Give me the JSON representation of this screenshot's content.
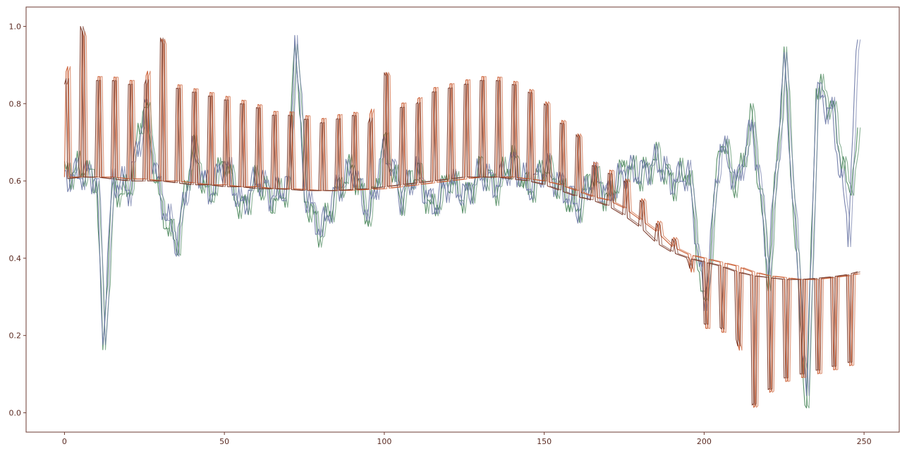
{
  "chart_data": {
    "type": "line",
    "title": "",
    "xlabel": "",
    "ylabel": "",
    "xlim": [
      -12,
      261
    ],
    "ylim": [
      -0.05,
      1.05
    ],
    "x_ticks": [
      0,
      50,
      100,
      150,
      200,
      250
    ],
    "x_tick_labels": [
      "0",
      "50",
      "100",
      "150",
      "200",
      "250"
    ],
    "y_ticks": [
      0.0,
      0.2,
      0.4,
      0.6,
      0.8,
      1.0
    ],
    "y_tick_labels": [
      "0.0",
      "0.2",
      "0.4",
      "0.6",
      "0.8",
      "1.0"
    ],
    "grid": false,
    "legend": "none",
    "series": [
      {
        "color": "#c95a2e",
        "description": "periodic spikes above a slowly varying baseline",
        "x": [
          0,
          5,
          10,
          15,
          20,
          25,
          30,
          35,
          40,
          45,
          50,
          55,
          60,
          65,
          70,
          75,
          80,
          85,
          90,
          95,
          100,
          105,
          110,
          115,
          120,
          125,
          130,
          135,
          140,
          145,
          150,
          155,
          160,
          165,
          170,
          175,
          180,
          185,
          190,
          195,
          200,
          205,
          210,
          215,
          220,
          225,
          230,
          235,
          240,
          245,
          248
        ],
        "baseline": [
          0.61,
          0.61,
          0.61,
          0.61,
          0.605,
          0.605,
          0.6,
          0.6,
          0.595,
          0.59,
          0.59,
          0.585,
          0.585,
          0.58,
          0.58,
          0.578,
          0.575,
          0.575,
          0.576,
          0.578,
          0.58,
          0.585,
          0.59,
          0.595,
          0.6,
          0.605,
          0.61,
          0.61,
          0.61,
          0.605,
          0.6,
          0.59,
          0.575,
          0.56,
          0.55,
          0.53,
          0.5,
          0.47,
          0.43,
          0.41,
          0.4,
          0.39,
          0.38,
          0.365,
          0.355,
          0.35,
          0.345,
          0.345,
          0.35,
          0.355,
          0.36
        ],
        "peaks": [
          0.87,
          1.0,
          0.87,
          0.87,
          0.86,
          0.86,
          0.98,
          0.85,
          0.84,
          0.83,
          0.82,
          0.81,
          0.8,
          0.78,
          0.78,
          0.77,
          0.76,
          0.77,
          0.78,
          0.76,
          0.89,
          0.8,
          0.81,
          0.84,
          0.85,
          0.86,
          0.87,
          0.87,
          0.86,
          0.84,
          0.81,
          0.76,
          0.73,
          0.65,
          0.63,
          0.61,
          0.56,
          0.5,
          0.46,
          0.4,
          0.22,
          0.21,
          0.2,
          0.01,
          0.05,
          0.08,
          0.09,
          0.1,
          0.11,
          0.12,
          0.13
        ]
      },
      {
        "color": "#4f8a5f",
        "description": "noisy series fluctuating around the baseline",
        "x": [
          0,
          5,
          10,
          12,
          15,
          20,
          25,
          30,
          35,
          40,
          45,
          50,
          55,
          60,
          65,
          70,
          72,
          75,
          80,
          85,
          90,
          95,
          100,
          105,
          110,
          115,
          120,
          125,
          130,
          135,
          140,
          145,
          150,
          155,
          160,
          165,
          170,
          175,
          180,
          185,
          190,
          195,
          200,
          205,
          210,
          215,
          220,
          225,
          230,
          232,
          235,
          240,
          245,
          248
        ],
        "values": [
          0.62,
          0.63,
          0.6,
          0.17,
          0.58,
          0.57,
          0.81,
          0.53,
          0.43,
          0.69,
          0.55,
          0.66,
          0.52,
          0.6,
          0.55,
          0.58,
          1.0,
          0.56,
          0.46,
          0.57,
          0.64,
          0.5,
          0.7,
          0.55,
          0.63,
          0.52,
          0.61,
          0.55,
          0.63,
          0.58,
          0.66,
          0.57,
          0.64,
          0.58,
          0.52,
          0.62,
          0.55,
          0.64,
          0.61,
          0.66,
          0.59,
          0.63,
          0.25,
          0.72,
          0.58,
          0.77,
          0.34,
          0.93,
          0.23,
          0.0,
          0.85,
          0.79,
          0.57,
          0.69
        ]
      },
      {
        "color": "#6f7aa8",
        "description": "noisy series closely tracking the green series",
        "x": [
          0,
          5,
          10,
          12,
          15,
          20,
          25,
          30,
          35,
          40,
          45,
          50,
          55,
          60,
          65,
          70,
          72,
          75,
          80,
          85,
          90,
          95,
          100,
          105,
          110,
          115,
          120,
          125,
          130,
          135,
          140,
          145,
          150,
          155,
          160,
          165,
          170,
          175,
          180,
          185,
          190,
          195,
          200,
          205,
          210,
          215,
          220,
          225,
          230,
          232,
          235,
          240,
          245,
          248
        ],
        "values": [
          0.61,
          0.62,
          0.61,
          0.18,
          0.6,
          0.58,
          0.78,
          0.55,
          0.44,
          0.67,
          0.57,
          0.65,
          0.53,
          0.61,
          0.56,
          0.59,
          0.98,
          0.57,
          0.47,
          0.58,
          0.63,
          0.51,
          0.69,
          0.56,
          0.62,
          0.53,
          0.6,
          0.56,
          0.62,
          0.59,
          0.65,
          0.58,
          0.63,
          0.59,
          0.53,
          0.61,
          0.56,
          0.63,
          0.62,
          0.65,
          0.6,
          0.62,
          0.28,
          0.7,
          0.59,
          0.75,
          0.37,
          0.91,
          0.26,
          0.04,
          0.83,
          0.77,
          0.47,
          0.98
        ]
      },
      {
        "color": "#7a3a2a",
        "description": "dark echo of the orange spike series (shifted)",
        "x": [
          0,
          5,
          10,
          15,
          20,
          25,
          30,
          35,
          40,
          45,
          50,
          55,
          60,
          65,
          70,
          75,
          80,
          85,
          90,
          95,
          100,
          105,
          110,
          115,
          120,
          125,
          130,
          135,
          140,
          145,
          150,
          155,
          160,
          165,
          170,
          175,
          180,
          185,
          190,
          195,
          200,
          205,
          210,
          215,
          220,
          225,
          230,
          235,
          240,
          245,
          248
        ],
        "baseline": [
          0.605,
          0.61,
          0.61,
          0.605,
          0.6,
          0.6,
          0.6,
          0.595,
          0.59,
          0.59,
          0.585,
          0.585,
          0.58,
          0.58,
          0.578,
          0.575,
          0.575,
          0.575,
          0.578,
          0.58,
          0.585,
          0.59,
          0.595,
          0.6,
          0.605,
          0.61,
          0.61,
          0.61,
          0.605,
          0.6,
          0.59,
          0.575,
          0.56,
          0.55,
          0.535,
          0.51,
          0.48,
          0.44,
          0.415,
          0.4,
          0.39,
          0.38,
          0.365,
          0.355,
          0.35,
          0.345,
          0.345,
          0.348,
          0.352,
          0.358,
          0.365
        ],
        "peaks": [
          0.85,
          1.0,
          0.86,
          0.86,
          0.85,
          0.85,
          0.97,
          0.84,
          0.83,
          0.82,
          0.81,
          0.8,
          0.79,
          0.77,
          0.77,
          0.76,
          0.75,
          0.76,
          0.77,
          0.75,
          0.88,
          0.79,
          0.8,
          0.83,
          0.84,
          0.85,
          0.86,
          0.86,
          0.85,
          0.83,
          0.8,
          0.75,
          0.72,
          0.64,
          0.62,
          0.6,
          0.55,
          0.49,
          0.45,
          0.39,
          0.23,
          0.22,
          0.19,
          0.02,
          0.06,
          0.09,
          0.1,
          0.11,
          0.12,
          0.13,
          0.14
        ]
      }
    ]
  }
}
